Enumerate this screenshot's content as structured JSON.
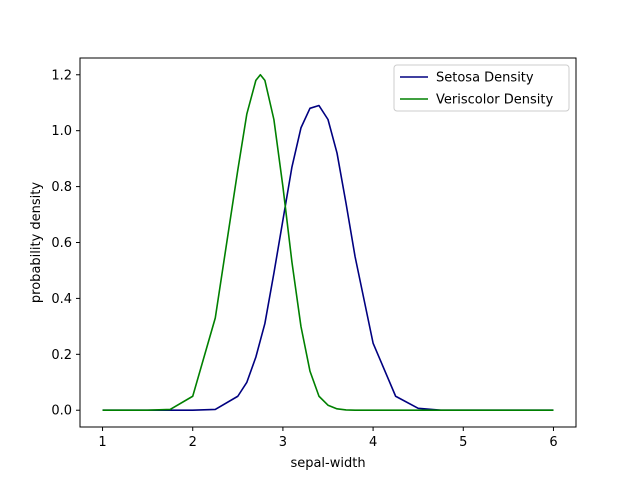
{
  "chart_data": {
    "type": "line",
    "title": "",
    "xlabel": "sepal-width",
    "ylabel": "probability density",
    "xlim": [
      0.75,
      6.25
    ],
    "ylim": [
      -0.06,
      1.26
    ],
    "xticks": [
      1,
      2,
      3,
      4,
      5,
      6
    ],
    "yticks": [
      0.0,
      0.2,
      0.4,
      0.6,
      0.8,
      1.0,
      1.2
    ],
    "ytick_labels": [
      "0.0",
      "0.2",
      "0.4",
      "0.6",
      "0.8",
      "1.0",
      "1.2"
    ],
    "grid": false,
    "legend_position": "top-right",
    "x": [
      1.0,
      1.25,
      1.5,
      1.75,
      2.0,
      2.25,
      2.5,
      2.6,
      2.7,
      2.75,
      2.8,
      2.9,
      3.0,
      3.1,
      3.2,
      3.3,
      3.4,
      3.5,
      3.6,
      3.7,
      3.8,
      4.0,
      4.25,
      4.5,
      4.75,
      5.0,
      5.5,
      6.0
    ],
    "series": [
      {
        "name": "Setosa Density",
        "color": "#000080",
        "values": [
          0.0,
          0.0,
          0.0,
          0.0,
          0.0,
          0.003,
          0.05,
          0.1,
          0.19,
          0.25,
          0.31,
          0.49,
          0.68,
          0.87,
          1.01,
          1.08,
          1.09,
          1.04,
          0.92,
          0.74,
          0.55,
          0.24,
          0.05,
          0.007,
          0.0,
          0.0,
          0.0,
          0.0
        ]
      },
      {
        "name": "Veriscolor Density",
        "color": "#008000",
        "values": [
          0.0,
          0.0,
          0.0,
          0.003,
          0.05,
          0.33,
          0.86,
          1.06,
          1.18,
          1.2,
          1.18,
          1.04,
          0.8,
          0.53,
          0.3,
          0.14,
          0.05,
          0.018,
          0.005,
          0.001,
          0.0,
          0.0,
          0.0,
          0.0,
          0.0,
          0.0,
          0.0,
          0.0
        ]
      }
    ]
  }
}
